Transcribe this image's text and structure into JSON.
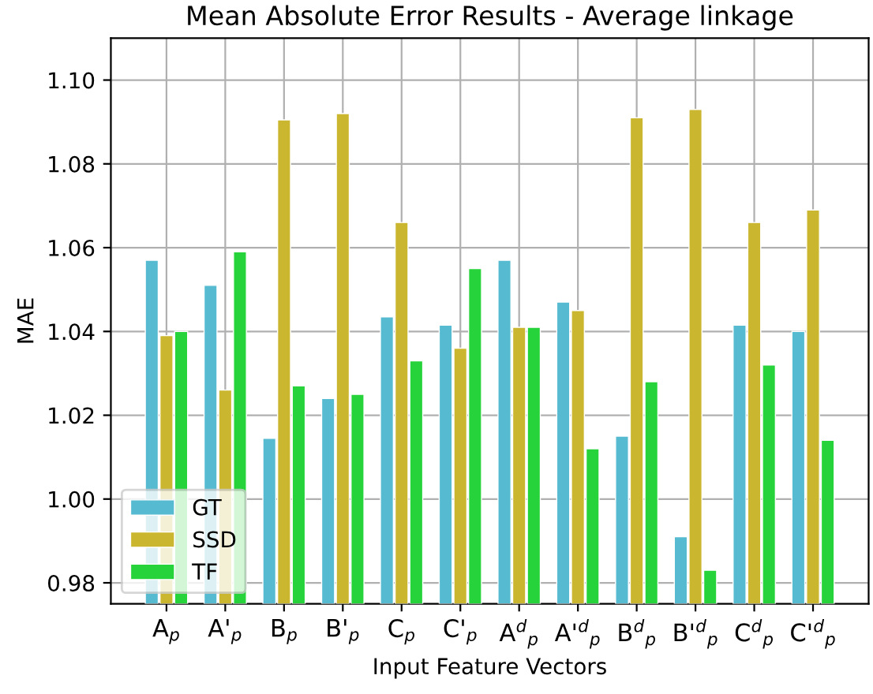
{
  "chart_data": {
    "type": "bar",
    "title": "Mean Absolute Error Results - Average linkage",
    "xlabel": "Input Feature Vectors",
    "ylabel": "MAE",
    "categories": [
      "A$_{p}$",
      "A'$_{p}$",
      "B$_{p}$",
      "B'$_{p}$",
      "C$_{p}$",
      "C'$_{p}$",
      "A$^{d}$$_{p}$",
      "A'$^{d}$$_{p}$",
      "B$^{d}$$_{p}$",
      "B'$^{d}$$_{p}$",
      "C$^{d}$$_{p}$",
      "C'$^{d}$$_{p}$"
    ],
    "series": [
      {
        "name": "GT",
        "color": "#56bbd1",
        "values": [
          1.057,
          1.051,
          1.0145,
          1.024,
          1.0435,
          1.0415,
          1.057,
          1.047,
          1.015,
          0.991,
          1.0415,
          1.04
        ]
      },
      {
        "name": "SSD",
        "color": "#cbb72f",
        "values": [
          1.039,
          1.026,
          1.0905,
          1.092,
          1.066,
          1.036,
          1.041,
          1.045,
          1.091,
          1.093,
          1.066,
          1.069
        ]
      },
      {
        "name": "TF",
        "color": "#26d33a",
        "values": [
          1.04,
          1.059,
          1.027,
          1.025,
          1.033,
          1.055,
          1.041,
          1.012,
          1.028,
          0.983,
          1.032,
          1.014
        ]
      }
    ],
    "ylim": [
      0.975,
      1.11
    ],
    "yticks": [
      0.98,
      {
        "value": 1.0,
        "label": "1.00"
      },
      1.02,
      1.04,
      1.06,
      1.08,
      {
        "value": 1.1,
        "label": "1.10"
      }
    ],
    "grid": true,
    "legend": "bottom left"
  }
}
